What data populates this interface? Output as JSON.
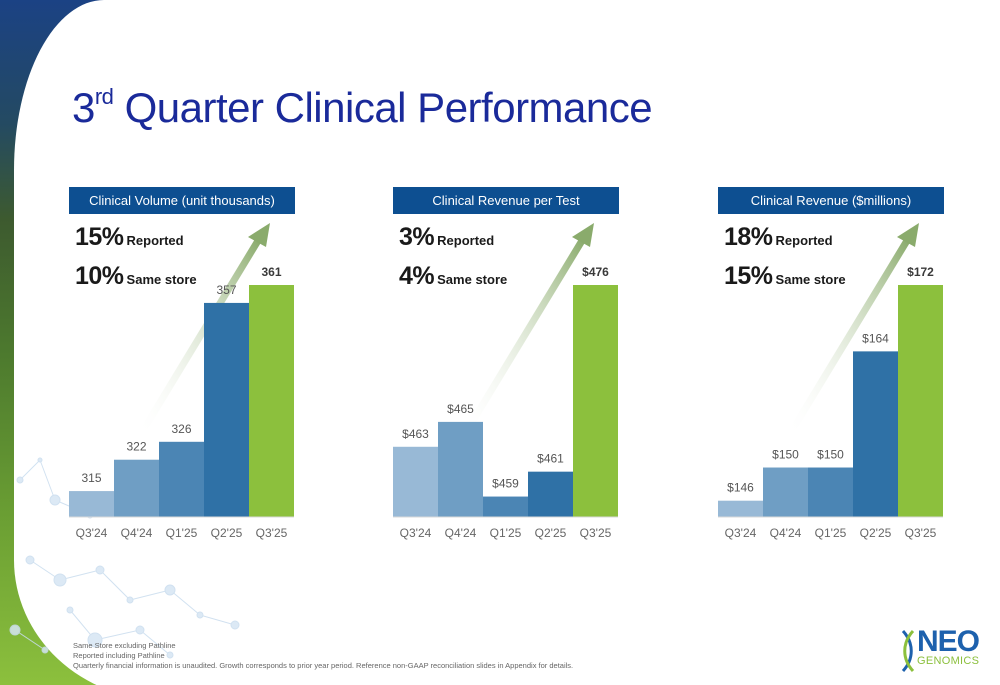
{
  "title": {
    "prefix": "3",
    "superscript": "rd",
    "rest": " Quarter Clinical Performance"
  },
  "colors": {
    "title": "#1a2a9a",
    "header_bg": "#0d4f91",
    "bar_colors": [
      "#98b9d6",
      "#6f9ec4",
      "#4b85b4",
      "#2f71a6",
      "#8cc03d"
    ],
    "arrow": "#8aab6c"
  },
  "panels": [
    {
      "header": "Clinical Volume (unit thousands)",
      "stats": [
        {
          "pct": "15%",
          "label": "Reported"
        },
        {
          "pct": "10%",
          "label": "Same store"
        }
      ]
    },
    {
      "header": "Clinical Revenue per Test",
      "stats": [
        {
          "pct": "3%",
          "label": "Reported"
        },
        {
          "pct": "4%",
          "label": "Same store"
        }
      ]
    },
    {
      "header": "Clinical Revenue ($millions)",
      "stats": [
        {
          "pct": "18%",
          "label": "Reported"
        },
        {
          "pct": "15%",
          "label": "Same store"
        }
      ]
    }
  ],
  "chart_data": [
    {
      "type": "bar",
      "title": "Clinical Volume (unit thousands)",
      "categories": [
        "Q3'24",
        "Q4'24",
        "Q1'25",
        "Q2'25",
        "Q3'25"
      ],
      "values": [
        315,
        322,
        326,
        357,
        361
      ],
      "labels": [
        "315",
        "322",
        "326",
        "357",
        "361"
      ],
      "ylim": [
        311,
        361
      ],
      "xlabel": "",
      "ylabel": "",
      "grid": false
    },
    {
      "type": "bar",
      "title": "Clinical Revenue per Test",
      "categories": [
        "Q3'24",
        "Q4'24",
        "Q1'25",
        "Q2'25",
        "Q3'25"
      ],
      "values": [
        463,
        465,
        459,
        461,
        476
      ],
      "labels": [
        "$463",
        "$465",
        "$459",
        "$461",
        "$476"
      ],
      "ylim": [
        458,
        476
      ],
      "xlabel": "",
      "ylabel": "",
      "grid": false
    },
    {
      "type": "bar",
      "title": "Clinical Revenue ($millions)",
      "categories": [
        "Q3'24",
        "Q4'24",
        "Q1'25",
        "Q2'25",
        "Q3'25"
      ],
      "values": [
        146,
        150,
        150,
        164,
        172
      ],
      "labels": [
        "$146",
        "$150",
        "$150",
        "$164",
        "$172"
      ],
      "ylim": [
        145,
        172
      ],
      "xlabel": "",
      "ylabel": "",
      "grid": false
    }
  ],
  "footnotes": [
    "Same Store excluding Pathline",
    "Reported including Pathline",
    "Quarterly financial information is unaudited. Growth corresponds to prior year period. Reference non-GAAP reconciliation slides in Appendix for details."
  ],
  "logo": {
    "line1": "NEO",
    "line2": "GENOMICS"
  }
}
